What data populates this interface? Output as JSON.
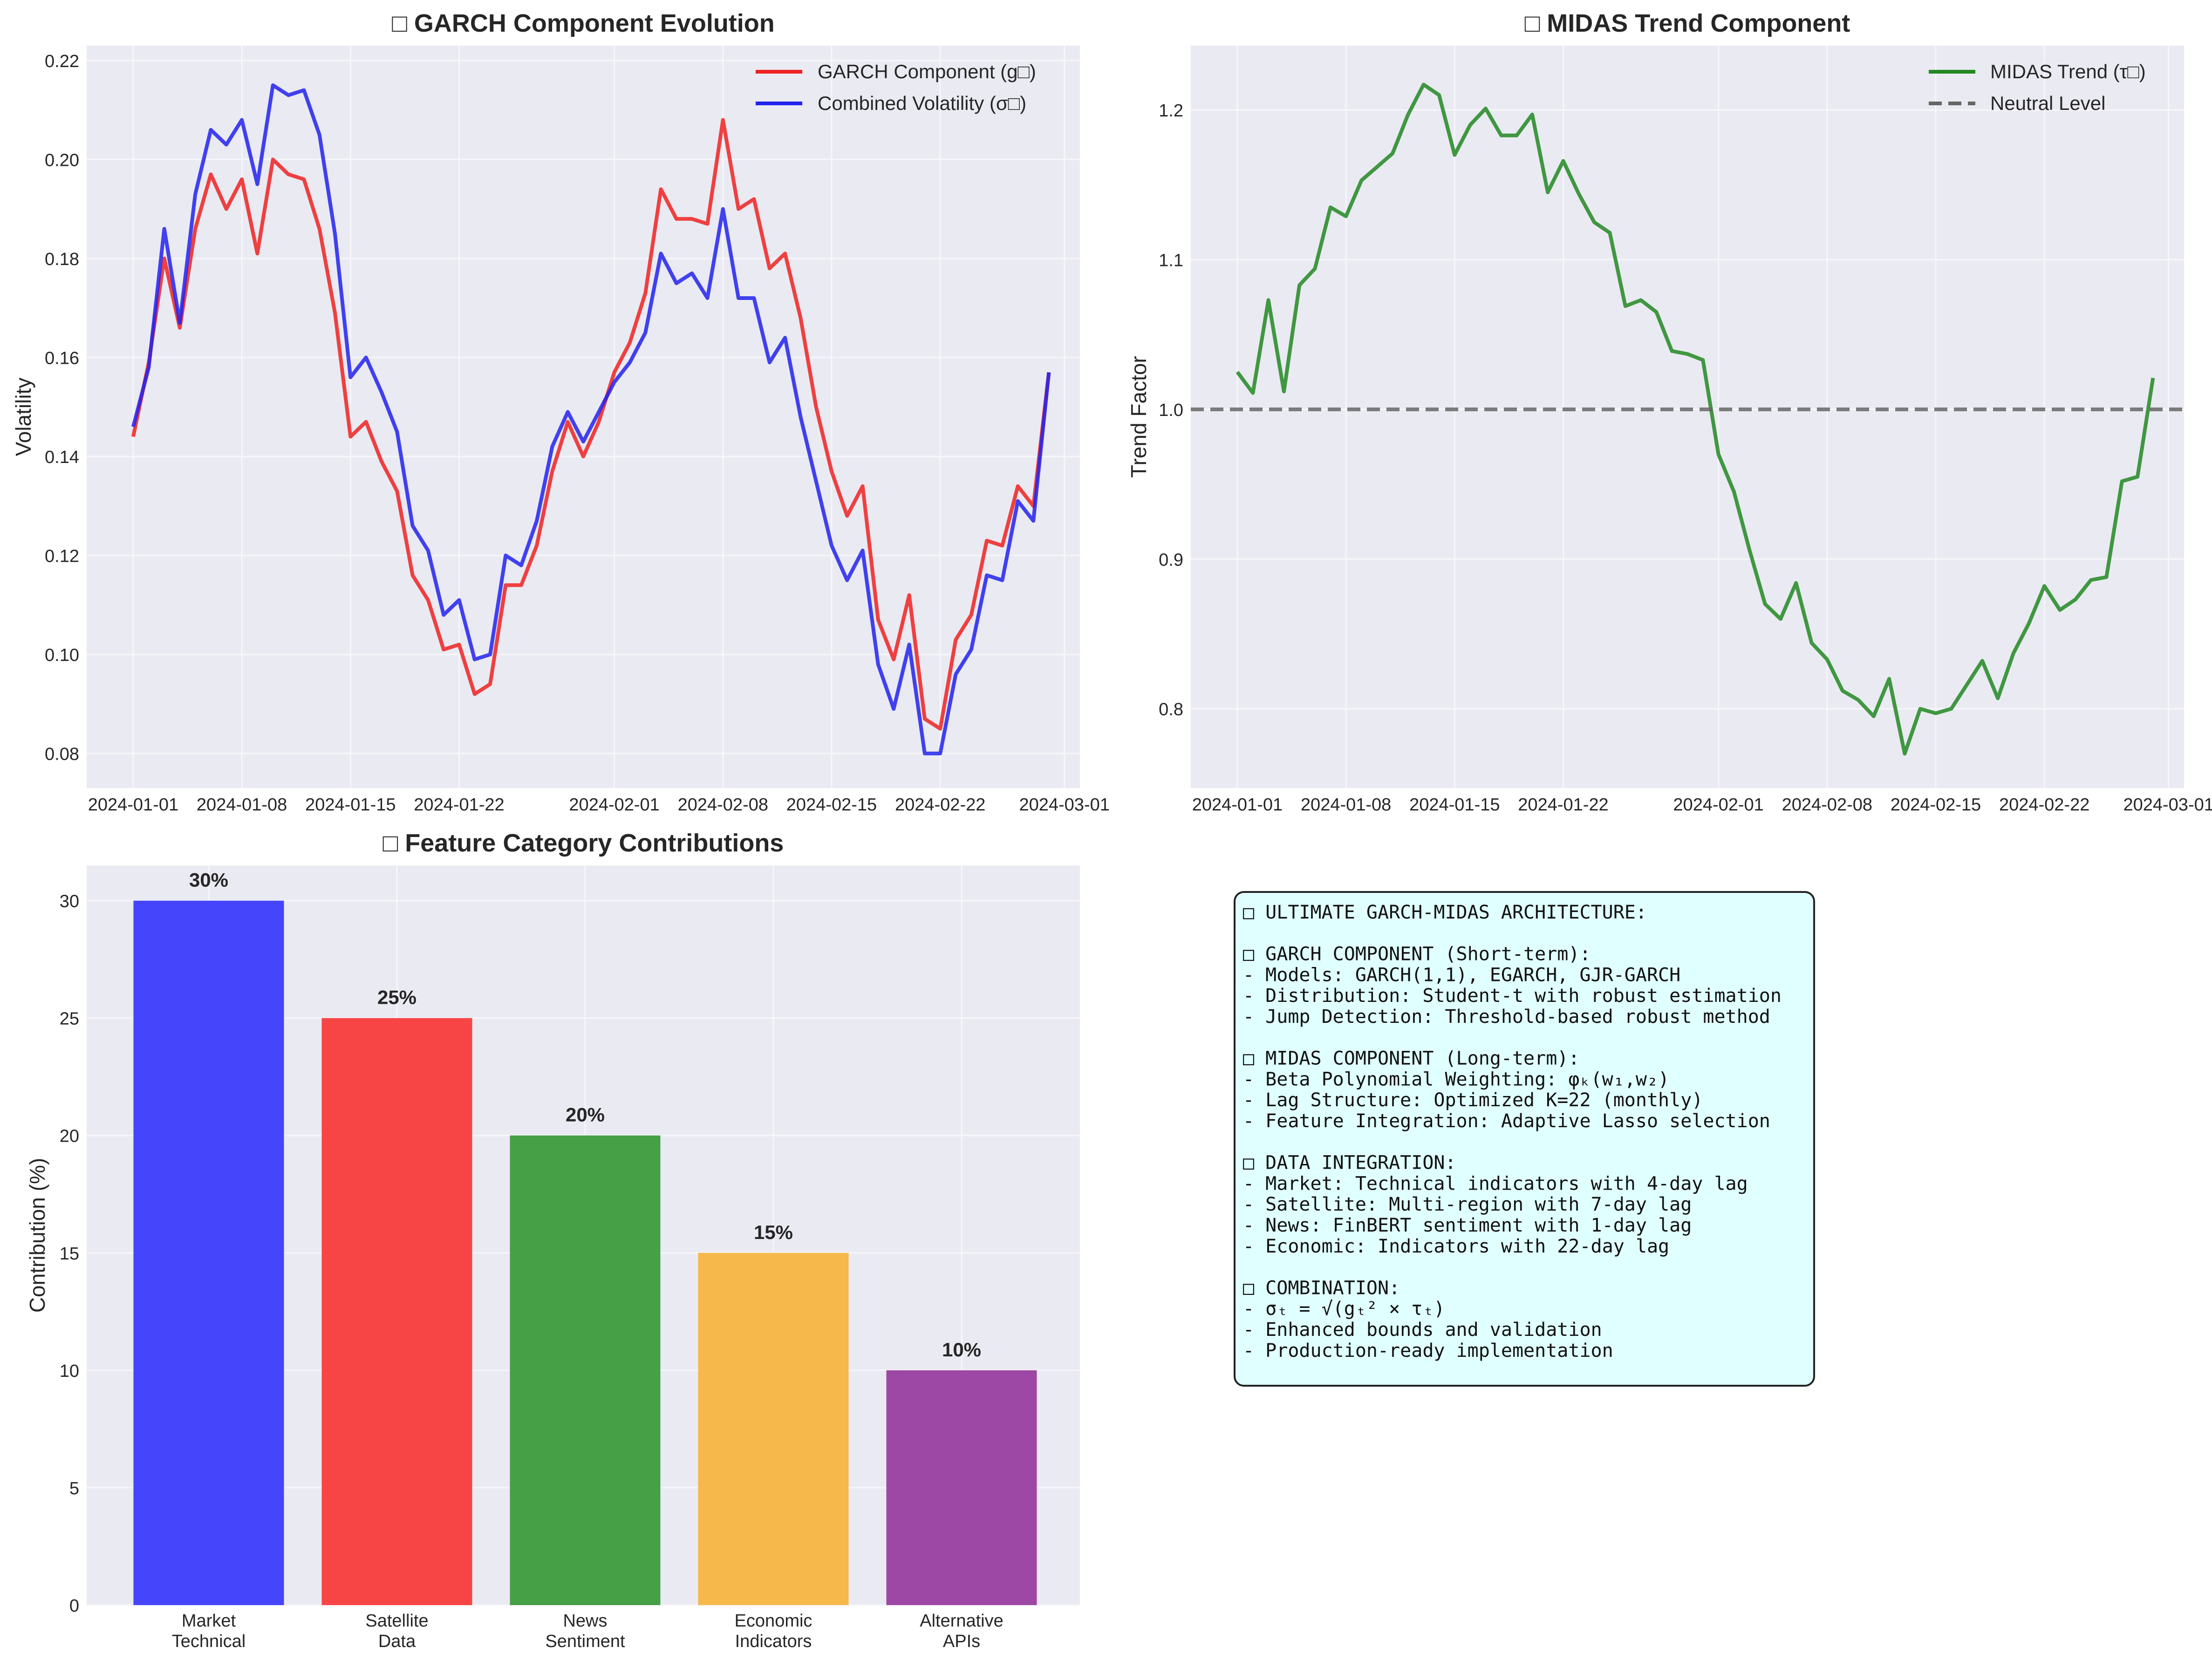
{
  "chart_data": [
    {
      "panel": "garch",
      "type": "line",
      "title": "□ GARCH Component Evolution",
      "xlabel": "",
      "ylabel": "Volatility",
      "ylim": [
        0.073,
        0.223
      ],
      "xlim": [
        "2023-12-29",
        "2024-03-02"
      ],
      "grid": true,
      "legend": "top-right",
      "x_ticks": [
        "2024-01-01",
        "2024-01-08",
        "2024-01-15",
        "2024-01-22",
        "2024-02-01",
        "2024-02-08",
        "2024-02-15",
        "2024-02-22",
        "2024-03-01"
      ],
      "y_ticks": [
        0.08,
        0.1,
        0.12,
        0.14,
        0.16,
        0.18,
        0.2,
        0.22
      ],
      "start_date": "2024-01-01",
      "series": [
        {
          "name": "GARCH Component (g□)",
          "color": "#ee2222",
          "values": [
            0.144,
            0.159,
            0.18,
            0.166,
            0.186,
            0.197,
            0.19,
            0.196,
            0.181,
            0.2,
            0.197,
            0.196,
            0.186,
            0.169,
            0.144,
            0.147,
            0.139,
            0.133,
            0.116,
            0.111,
            0.101,
            0.102,
            0.092,
            0.094,
            0.114,
            0.114,
            0.122,
            0.137,
            0.147,
            0.14,
            0.147,
            0.157,
            0.163,
            0.173,
            0.194,
            0.188,
            0.188,
            0.187,
            0.208,
            0.19,
            0.192,
            0.178,
            0.181,
            0.168,
            0.15,
            0.137,
            0.128,
            0.134,
            0.107,
            0.099,
            0.112,
            0.087,
            0.085,
            0.103,
            0.108,
            0.123,
            0.122,
            0.134,
            0.13,
            0.157
          ]
        },
        {
          "name": "Combined Volatility (σ□)",
          "color": "#2222ee",
          "values": [
            0.146,
            0.158,
            0.186,
            0.167,
            0.193,
            0.206,
            0.203,
            0.208,
            0.195,
            0.215,
            0.213,
            0.214,
            0.205,
            0.185,
            0.156,
            0.16,
            0.153,
            0.145,
            0.126,
            0.121,
            0.108,
            0.111,
            0.099,
            0.1,
            0.12,
            0.118,
            0.127,
            0.142,
            0.149,
            0.143,
            0.149,
            0.155,
            0.159,
            0.165,
            0.181,
            0.175,
            0.177,
            0.172,
            0.19,
            0.172,
            0.172,
            0.159,
            0.164,
            0.148,
            0.135,
            0.122,
            0.115,
            0.121,
            0.098,
            0.089,
            0.102,
            0.08,
            0.08,
            0.096,
            0.101,
            0.116,
            0.115,
            0.131,
            0.127,
            0.157
          ]
        }
      ]
    },
    {
      "panel": "midas",
      "type": "line",
      "title": "□ MIDAS Trend Component",
      "xlabel": "",
      "ylabel": "Trend Factor",
      "ylim": [
        0.747,
        1.243
      ],
      "xlim": [
        "2023-12-29",
        "2024-03-02"
      ],
      "grid": true,
      "legend": "top-right",
      "x_ticks": [
        "2024-01-01",
        "2024-01-08",
        "2024-01-15",
        "2024-01-22",
        "2024-02-01",
        "2024-02-08",
        "2024-02-15",
        "2024-02-22",
        "2024-03-01"
      ],
      "y_ticks": [
        0.8,
        0.9,
        1.0,
        1.1,
        1.2
      ],
      "start_date": "2024-01-01",
      "series": [
        {
          "name": "MIDAS Trend (τ□)",
          "color": "#228822",
          "values": [
            1.025,
            1.011,
            1.073,
            1.012,
            1.083,
            1.094,
            1.135,
            1.129,
            1.153,
            1.162,
            1.171,
            1.197,
            1.217,
            1.21,
            1.17,
            1.19,
            1.201,
            1.183,
            1.183,
            1.197,
            1.145,
            1.166,
            1.144,
            1.125,
            1.118,
            1.069,
            1.073,
            1.065,
            1.039,
            1.037,
            1.033,
            0.97,
            0.945,
            0.906,
            0.87,
            0.86,
            0.884,
            0.844,
            0.833,
            0.812,
            0.806,
            0.795,
            0.82,
            0.77,
            0.8,
            0.797,
            0.8,
            0.816,
            0.832,
            0.807,
            0.837,
            0.857,
            0.882,
            0.866,
            0.873,
            0.886,
            0.888,
            0.952,
            0.955,
            1.021
          ]
        },
        {
          "name": "Neutral Level",
          "color": "#666666",
          "style": "dashed",
          "values": [
            1.0
          ]
        }
      ]
    },
    {
      "panel": "features",
      "type": "bar",
      "title": "□ Feature Category Contributions",
      "xlabel": "",
      "ylabel": "Contribution (%)",
      "ylim": [
        0,
        31.5
      ],
      "grid": true,
      "y_ticks": [
        0,
        5,
        10,
        15,
        20,
        25,
        30
      ],
      "categories": [
        "Market\nTechnical",
        "Satellite\nData",
        "News\nSentiment",
        "Economic\nIndicators",
        "Alternative\nAPIs"
      ],
      "values": [
        30,
        25,
        20,
        15,
        10
      ],
      "value_labels": [
        "30%",
        "25%",
        "20%",
        "15%",
        "10%"
      ],
      "colors": [
        "#4545fb",
        "#f74545",
        "#46a046",
        "#f6b84b",
        "#9d48a4"
      ]
    }
  ],
  "textbox": {
    "lines": [
      "□ ULTIMATE GARCH-MIDAS ARCHITECTURE:",
      "",
      "□ GARCH COMPONENT (Short-term):",
      "- Models: GARCH(1,1), EGARCH, GJR-GARCH",
      "- Distribution: Student-t with robust estimation",
      "- Jump Detection: Threshold-based robust method",
      "",
      "□ MIDAS COMPONENT (Long-term):",
      "- Beta Polynomial Weighting: φₖ(w₁,w₂)",
      "- Lag Structure: Optimized K=22 (monthly)",
      "- Feature Integration: Adaptive Lasso selection",
      "",
      "□ DATA INTEGRATION:",
      "- Market: Technical indicators with 4-day lag",
      "- Satellite: Multi-region with 7-day lag",
      "- News: FinBERT sentiment with 1-day lag",
      "- Economic: Indicators with 22-day lag",
      "",
      "□ COMBINATION:",
      "- σₜ = √(gₜ² × τₜ)",
      "- Enhanced bounds and validation",
      "- Production-ready implementation"
    ],
    "background": "#e0ffff"
  },
  "colors": {
    "axes_bg": "#eaeaf2",
    "grid": "#f6f6fa",
    "text": "#262626"
  }
}
